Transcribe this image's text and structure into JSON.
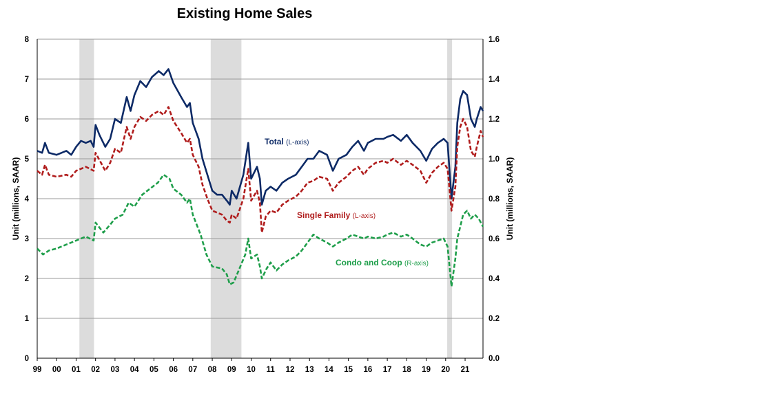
{
  "chart_data": {
    "type": "line",
    "title": "Existing Home Sales",
    "ylabel_left": "Unit (millions, SAAR)",
    "ylabel_right": "Unit (millions, SAAR)",
    "ylim_left": [
      0,
      8
    ],
    "ylim_right": [
      0,
      1.6
    ],
    "yticks_left": [
      "0",
      "1",
      "2",
      "3",
      "4",
      "5",
      "6",
      "7",
      "8"
    ],
    "yticks_right": [
      "0.0",
      "0.2",
      "0.4",
      "0.6",
      "0.8",
      "1.0",
      "1.2",
      "1.4",
      "1.6"
    ],
    "xlim": [
      1999.0,
      2021.92
    ],
    "xticks": [
      {
        "x": 1999.0,
        "label": "99"
      },
      {
        "x": 2000.0,
        "label": "00"
      },
      {
        "x": 2001.0,
        "label": "01"
      },
      {
        "x": 2002.0,
        "label": "02"
      },
      {
        "x": 2003.0,
        "label": "03"
      },
      {
        "x": 2004.0,
        "label": "04"
      },
      {
        "x": 2005.0,
        "label": "05"
      },
      {
        "x": 2006.0,
        "label": "06"
      },
      {
        "x": 2007.0,
        "label": "07"
      },
      {
        "x": 2008.0,
        "label": "08"
      },
      {
        "x": 2009.0,
        "label": "09"
      },
      {
        "x": 2010.0,
        "label": "10"
      },
      {
        "x": 2011.0,
        "label": "11"
      },
      {
        "x": 2012.0,
        "label": "12"
      },
      {
        "x": 2013.0,
        "label": "13"
      },
      {
        "x": 2014.0,
        "label": "14"
      },
      {
        "x": 2015.0,
        "label": "15"
      },
      {
        "x": 2016.0,
        "label": "16"
      },
      {
        "x": 2017.0,
        "label": "17"
      },
      {
        "x": 2018.0,
        "label": "18"
      },
      {
        "x": 2019.0,
        "label": "19"
      },
      {
        "x": 2020.0,
        "label": "20"
      },
      {
        "x": 2021.0,
        "label": "21"
      }
    ],
    "grid": true,
    "recessions": [
      [
        2001.17,
        2001.92
      ],
      [
        2007.92,
        2009.5
      ],
      [
        2020.08,
        2020.33
      ]
    ],
    "series": [
      {
        "name": "Total",
        "axis_note": "(L-axis)",
        "axis": "left",
        "color": "#0d2a66",
        "dash": "solid",
        "points": [
          [
            1999.0,
            5.2
          ],
          [
            1999.25,
            5.15
          ],
          [
            1999.4,
            5.4
          ],
          [
            1999.6,
            5.15
          ],
          [
            2000.0,
            5.1
          ],
          [
            2000.5,
            5.2
          ],
          [
            2000.75,
            5.1
          ],
          [
            2001.0,
            5.3
          ],
          [
            2001.25,
            5.45
          ],
          [
            2001.5,
            5.4
          ],
          [
            2001.75,
            5.45
          ],
          [
            2001.9,
            5.3
          ],
          [
            2002.0,
            5.85
          ],
          [
            2002.2,
            5.6
          ],
          [
            2002.5,
            5.3
          ],
          [
            2002.75,
            5.5
          ],
          [
            2003.0,
            6.0
          ],
          [
            2003.3,
            5.9
          ],
          [
            2003.6,
            6.55
          ],
          [
            2003.8,
            6.2
          ],
          [
            2004.0,
            6.6
          ],
          [
            2004.3,
            6.95
          ],
          [
            2004.6,
            6.8
          ],
          [
            2004.9,
            7.05
          ],
          [
            2005.25,
            7.2
          ],
          [
            2005.5,
            7.1
          ],
          [
            2005.75,
            7.25
          ],
          [
            2006.0,
            6.9
          ],
          [
            2006.4,
            6.55
          ],
          [
            2006.7,
            6.3
          ],
          [
            2006.85,
            6.4
          ],
          [
            2007.0,
            5.9
          ],
          [
            2007.3,
            5.5
          ],
          [
            2007.5,
            5.0
          ],
          [
            2007.75,
            4.6
          ],
          [
            2008.0,
            4.2
          ],
          [
            2008.25,
            4.1
          ],
          [
            2008.5,
            4.1
          ],
          [
            2008.75,
            3.95
          ],
          [
            2008.9,
            3.85
          ],
          [
            2009.0,
            4.2
          ],
          [
            2009.25,
            4.0
          ],
          [
            2009.6,
            4.6
          ],
          [
            2009.85,
            5.4
          ],
          [
            2010.0,
            4.5
          ],
          [
            2010.3,
            4.8
          ],
          [
            2010.45,
            4.5
          ],
          [
            2010.55,
            3.85
          ],
          [
            2010.75,
            4.2
          ],
          [
            2011.0,
            4.3
          ],
          [
            2011.3,
            4.2
          ],
          [
            2011.6,
            4.4
          ],
          [
            2011.9,
            4.5
          ],
          [
            2012.3,
            4.6
          ],
          [
            2012.6,
            4.8
          ],
          [
            2012.9,
            5.0
          ],
          [
            2013.2,
            5.0
          ],
          [
            2013.5,
            5.2
          ],
          [
            2013.9,
            5.1
          ],
          [
            2014.2,
            4.7
          ],
          [
            2014.5,
            5.0
          ],
          [
            2014.9,
            5.1
          ],
          [
            2015.2,
            5.3
          ],
          [
            2015.5,
            5.45
          ],
          [
            2015.8,
            5.2
          ],
          [
            2016.0,
            5.4
          ],
          [
            2016.4,
            5.5
          ],
          [
            2016.8,
            5.5
          ],
          [
            2017.0,
            5.55
          ],
          [
            2017.3,
            5.6
          ],
          [
            2017.7,
            5.45
          ],
          [
            2018.0,
            5.6
          ],
          [
            2018.3,
            5.4
          ],
          [
            2018.7,
            5.2
          ],
          [
            2019.0,
            4.95
          ],
          [
            2019.3,
            5.25
          ],
          [
            2019.6,
            5.4
          ],
          [
            2019.9,
            5.5
          ],
          [
            2020.1,
            5.4
          ],
          [
            2020.3,
            4.0
          ],
          [
            2020.5,
            4.8
          ],
          [
            2020.6,
            5.9
          ],
          [
            2020.75,
            6.5
          ],
          [
            2020.9,
            6.7
          ],
          [
            2021.1,
            6.6
          ],
          [
            2021.3,
            6.0
          ],
          [
            2021.5,
            5.8
          ],
          [
            2021.6,
            6.0
          ],
          [
            2021.8,
            6.3
          ],
          [
            2021.92,
            6.2
          ]
        ]
      },
      {
        "name": "Single Family",
        "axis_note": "(L-axis)",
        "axis": "left",
        "color": "#b01c1c",
        "dash": "dashed",
        "points": [
          [
            1999.0,
            4.7
          ],
          [
            1999.25,
            4.6
          ],
          [
            1999.4,
            4.85
          ],
          [
            1999.6,
            4.6
          ],
          [
            2000.0,
            4.55
          ],
          [
            2000.5,
            4.6
          ],
          [
            2000.75,
            4.55
          ],
          [
            2001.0,
            4.7
          ],
          [
            2001.5,
            4.8
          ],
          [
            2001.9,
            4.7
          ],
          [
            2002.0,
            5.15
          ],
          [
            2002.5,
            4.7
          ],
          [
            2002.75,
            4.9
          ],
          [
            2003.0,
            5.25
          ],
          [
            2003.3,
            5.15
          ],
          [
            2003.6,
            5.8
          ],
          [
            2003.8,
            5.5
          ],
          [
            2004.0,
            5.8
          ],
          [
            2004.3,
            6.05
          ],
          [
            2004.6,
            5.95
          ],
          [
            2004.9,
            6.1
          ],
          [
            2005.25,
            6.2
          ],
          [
            2005.5,
            6.1
          ],
          [
            2005.75,
            6.3
          ],
          [
            2006.0,
            5.95
          ],
          [
            2006.4,
            5.65
          ],
          [
            2006.7,
            5.4
          ],
          [
            2006.85,
            5.5
          ],
          [
            2007.0,
            5.1
          ],
          [
            2007.3,
            4.8
          ],
          [
            2007.5,
            4.35
          ],
          [
            2007.75,
            4.0
          ],
          [
            2008.0,
            3.7
          ],
          [
            2008.5,
            3.6
          ],
          [
            2008.75,
            3.45
          ],
          [
            2008.9,
            3.4
          ],
          [
            2009.0,
            3.6
          ],
          [
            2009.25,
            3.5
          ],
          [
            2009.6,
            4.0
          ],
          [
            2009.85,
            4.75
          ],
          [
            2010.0,
            3.95
          ],
          [
            2010.3,
            4.2
          ],
          [
            2010.45,
            3.9
          ],
          [
            2010.55,
            3.15
          ],
          [
            2010.75,
            3.55
          ],
          [
            2011.0,
            3.7
          ],
          [
            2011.3,
            3.65
          ],
          [
            2011.6,
            3.85
          ],
          [
            2011.9,
            3.95
          ],
          [
            2012.3,
            4.05
          ],
          [
            2012.6,
            4.2
          ],
          [
            2012.9,
            4.4
          ],
          [
            2013.2,
            4.45
          ],
          [
            2013.5,
            4.55
          ],
          [
            2013.9,
            4.5
          ],
          [
            2014.2,
            4.2
          ],
          [
            2014.5,
            4.4
          ],
          [
            2014.9,
            4.55
          ],
          [
            2015.2,
            4.7
          ],
          [
            2015.5,
            4.8
          ],
          [
            2015.8,
            4.6
          ],
          [
            2016.0,
            4.75
          ],
          [
            2016.4,
            4.9
          ],
          [
            2016.8,
            4.95
          ],
          [
            2017.0,
            4.9
          ],
          [
            2017.3,
            5.0
          ],
          [
            2017.7,
            4.85
          ],
          [
            2018.0,
            4.95
          ],
          [
            2018.3,
            4.85
          ],
          [
            2018.7,
            4.7
          ],
          [
            2019.0,
            4.4
          ],
          [
            2019.3,
            4.65
          ],
          [
            2019.6,
            4.8
          ],
          [
            2019.9,
            4.9
          ],
          [
            2020.1,
            4.75
          ],
          [
            2020.3,
            3.7
          ],
          [
            2020.5,
            4.3
          ],
          [
            2020.6,
            5.3
          ],
          [
            2020.75,
            5.8
          ],
          [
            2020.9,
            6.0
          ],
          [
            2021.1,
            5.8
          ],
          [
            2021.3,
            5.2
          ],
          [
            2021.5,
            5.05
          ],
          [
            2021.6,
            5.3
          ],
          [
            2021.8,
            5.7
          ],
          [
            2021.92,
            5.55
          ]
        ]
      },
      {
        "name": "Condo and Coop",
        "axis_note": "(R-axis)",
        "axis": "right",
        "color": "#1e9e4a",
        "dash": "dashed",
        "points": [
          [
            1999.0,
            0.55
          ],
          [
            1999.3,
            0.52
          ],
          [
            1999.6,
            0.54
          ],
          [
            2000.0,
            0.55
          ],
          [
            2000.5,
            0.57
          ],
          [
            2001.0,
            0.59
          ],
          [
            2001.5,
            0.61
          ],
          [
            2001.9,
            0.59
          ],
          [
            2002.0,
            0.68
          ],
          [
            2002.4,
            0.63
          ],
          [
            2002.75,
            0.67
          ],
          [
            2003.0,
            0.7
          ],
          [
            2003.4,
            0.72
          ],
          [
            2003.7,
            0.78
          ],
          [
            2004.0,
            0.76
          ],
          [
            2004.4,
            0.82
          ],
          [
            2004.8,
            0.85
          ],
          [
            2005.2,
            0.88
          ],
          [
            2005.5,
            0.92
          ],
          [
            2005.8,
            0.9
          ],
          [
            2006.0,
            0.85
          ],
          [
            2006.4,
            0.82
          ],
          [
            2006.7,
            0.78
          ],
          [
            2006.85,
            0.8
          ],
          [
            2007.0,
            0.72
          ],
          [
            2007.4,
            0.62
          ],
          [
            2007.7,
            0.52
          ],
          [
            2008.0,
            0.46
          ],
          [
            2008.5,
            0.45
          ],
          [
            2008.75,
            0.42
          ],
          [
            2008.9,
            0.37
          ],
          [
            2009.1,
            0.38
          ],
          [
            2009.4,
            0.45
          ],
          [
            2009.7,
            0.52
          ],
          [
            2009.85,
            0.6
          ],
          [
            2010.0,
            0.5
          ],
          [
            2010.3,
            0.52
          ],
          [
            2010.45,
            0.46
          ],
          [
            2010.55,
            0.4
          ],
          [
            2010.8,
            0.45
          ],
          [
            2011.0,
            0.48
          ],
          [
            2011.3,
            0.44
          ],
          [
            2011.6,
            0.47
          ],
          [
            2011.9,
            0.49
          ],
          [
            2012.3,
            0.51
          ],
          [
            2012.6,
            0.54
          ],
          [
            2012.9,
            0.58
          ],
          [
            2013.2,
            0.62
          ],
          [
            2013.5,
            0.6
          ],
          [
            2013.9,
            0.58
          ],
          [
            2014.2,
            0.56
          ],
          [
            2014.5,
            0.58
          ],
          [
            2014.9,
            0.6
          ],
          [
            2015.2,
            0.62
          ],
          [
            2015.5,
            0.61
          ],
          [
            2015.8,
            0.6
          ],
          [
            2016.0,
            0.61
          ],
          [
            2016.4,
            0.6
          ],
          [
            2016.8,
            0.61
          ],
          [
            2017.0,
            0.62
          ],
          [
            2017.3,
            0.63
          ],
          [
            2017.7,
            0.61
          ],
          [
            2018.0,
            0.62
          ],
          [
            2018.3,
            0.6
          ],
          [
            2018.7,
            0.57
          ],
          [
            2019.0,
            0.56
          ],
          [
            2019.3,
            0.58
          ],
          [
            2019.6,
            0.59
          ],
          [
            2019.9,
            0.6
          ],
          [
            2020.1,
            0.56
          ],
          [
            2020.3,
            0.36
          ],
          [
            2020.5,
            0.5
          ],
          [
            2020.6,
            0.6
          ],
          [
            2020.75,
            0.66
          ],
          [
            2020.9,
            0.72
          ],
          [
            2021.1,
            0.74
          ],
          [
            2021.3,
            0.7
          ],
          [
            2021.5,
            0.72
          ],
          [
            2021.7,
            0.7
          ],
          [
            2021.92,
            0.66
          ]
        ]
      }
    ],
    "annotations": [
      {
        "series": 0,
        "text": "Total",
        "note": "(L-axis)"
      },
      {
        "series": 1,
        "text": "Single Family",
        "note": "(L-axis)"
      },
      {
        "series": 2,
        "text": "Condo and Coop",
        "note": "(R-axis)"
      }
    ]
  }
}
